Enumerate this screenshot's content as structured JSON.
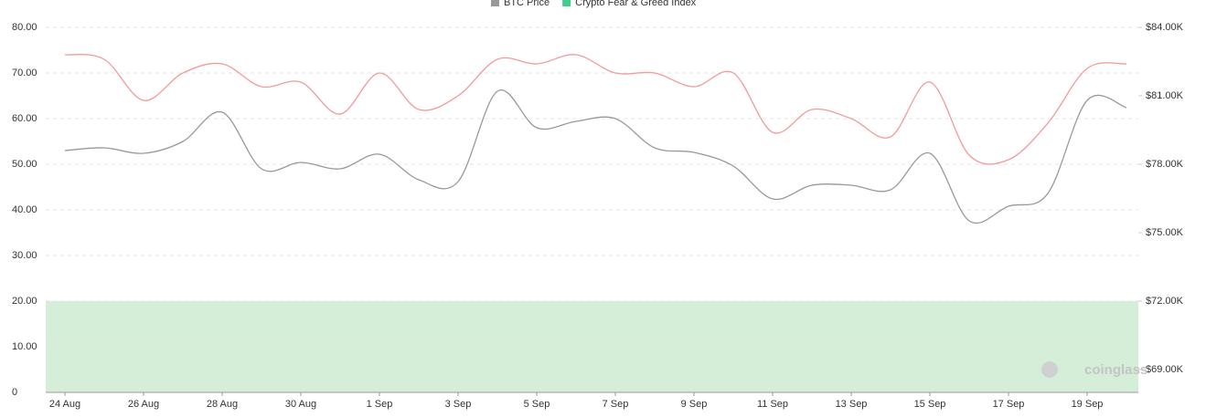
{
  "chart_data": {
    "type": "line",
    "categories": [
      "24 Aug",
      null,
      "26 Aug",
      null,
      "28 Aug",
      null,
      "30 Aug",
      null,
      "1 Sep",
      null,
      "3 Sep",
      null,
      "5 Sep",
      null,
      "7 Sep",
      null,
      "9 Sep",
      null,
      "11 Sep",
      null,
      "13 Sep",
      null,
      "15 Sep",
      null,
      "17 Sep",
      null,
      "19 Sep",
      null
    ],
    "series": [
      {
        "name": "BTC Price",
        "color": "#999999",
        "axis": "y2",
        "values": [
          78600,
          78720,
          78480,
          79000,
          80280,
          77800,
          78080,
          77800,
          78440,
          77320,
          77240,
          81200,
          79600,
          79880,
          80000,
          78720,
          78520,
          77920,
          76480,
          77080,
          77080,
          76880,
          78480,
          75520,
          76160,
          76720,
          80800,
          80480
        ]
      },
      {
        "name": "Crypto Fear & Greed Index",
        "color": "#f29a9a",
        "legend_color": "#3ed08a",
        "values": [
          74,
          73,
          64,
          70,
          72,
          67,
          68,
          61,
          70,
          62,
          65,
          73,
          72,
          74,
          70,
          70,
          67,
          70,
          57,
          62,
          60,
          56,
          68,
          52,
          51,
          59,
          71,
          72
        ]
      }
    ],
    "ylim": [
      0,
      80
    ],
    "yticks": [
      0,
      {
        "value": 10,
        "label": "10.00"
      },
      {
        "value": 20,
        "label": "20.00"
      },
      {
        "value": 30,
        "label": "30.00"
      },
      {
        "value": 40,
        "label": "40.00"
      },
      {
        "value": 50,
        "label": "50.00"
      },
      {
        "value": 60,
        "label": "60.00"
      },
      {
        "value": 70,
        "label": "70.00"
      },
      {
        "value": 80,
        "label": "80.00"
      }
    ],
    "y2lim": [
      68000,
      84000
    ],
    "y2ticks": [
      {
        "value": 69000,
        "label": "$69.00K"
      },
      {
        "value": 72000,
        "label": "$72.00K"
      },
      {
        "value": 75000,
        "label": "$75.00K"
      },
      {
        "value": 78000,
        "label": "$78.00K"
      },
      {
        "value": 81000,
        "label": "$81.00K"
      },
      {
        "value": 84000,
        "label": "$84.00K"
      }
    ],
    "shaded_range": [
      0,
      20
    ],
    "shaded_color": "#d5eed8",
    "grid": true,
    "watermark": "coinglass"
  }
}
